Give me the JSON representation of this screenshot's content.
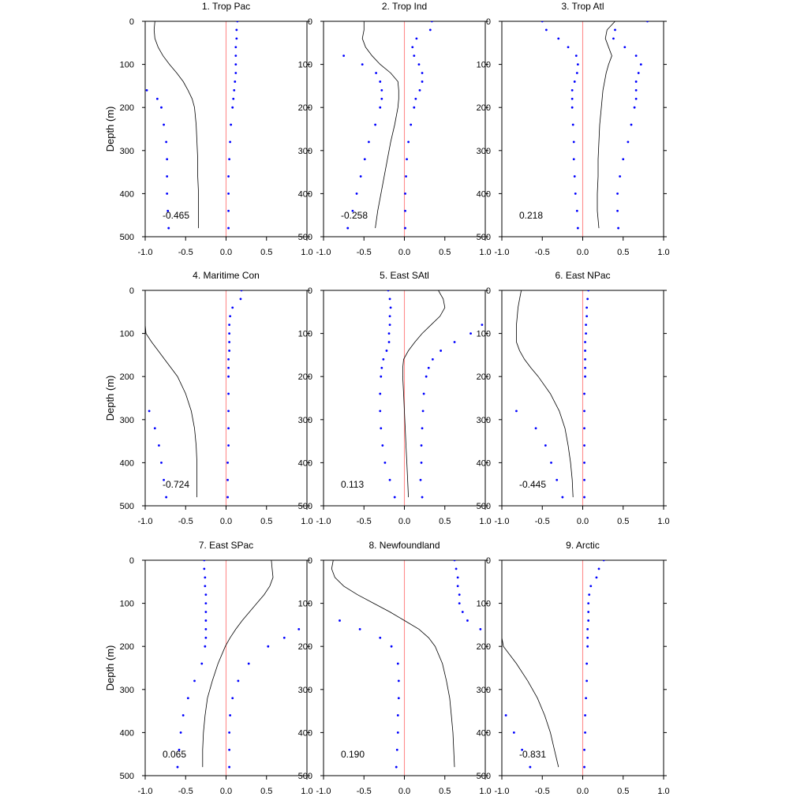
{
  "chart_data": [
    {
      "type": "line",
      "title": "1. Trop Pac",
      "ylabel": "Depth (m)",
      "correlation": "-0.465",
      "xlim": [
        -1.0,
        1.0
      ],
      "ylim": [
        500,
        0
      ],
      "xticks": [
        "-1.0",
        "-0.5",
        "0.0",
        "0.5",
        "1.0"
      ],
      "yticks": [
        "0",
        "100",
        "200",
        "300",
        "400",
        "500"
      ],
      "colors": {
        "profile": "#000000",
        "bounds": "#0000ff",
        "zero_line": "#ff8c8c"
      },
      "depth": [
        0,
        20,
        40,
        60,
        80,
        100,
        120,
        140,
        160,
        180,
        200,
        240,
        280,
        320,
        360,
        400,
        440,
        480
      ],
      "series": [
        {
          "values": [
            -0.88,
            -0.89,
            -0.88,
            -0.84,
            -0.78,
            -0.7,
            -0.61,
            -0.53,
            -0.47,
            -0.42,
            -0.39,
            -0.37,
            -0.36,
            -0.35,
            -0.35,
            -0.34,
            -0.34,
            -0.34
          ]
        },
        {
          "values": [
            -1.0,
            -1.0,
            -1.0,
            -1.0,
            -1.0,
            -1.0,
            -1.0,
            -1.0,
            -0.98,
            -0.85,
            -0.8,
            -0.77,
            -0.74,
            -0.73,
            -0.73,
            -0.73,
            -0.72,
            -0.71
          ]
        },
        {
          "values": [
            0.14,
            0.13,
            0.13,
            0.12,
            0.12,
            0.12,
            0.12,
            0.11,
            0.1,
            0.09,
            0.08,
            0.06,
            0.05,
            0.04,
            0.03,
            0.03,
            0.03,
            0.03
          ]
        }
      ]
    },
    {
      "type": "line",
      "title": "2. Trop Ind",
      "ylabel": "",
      "correlation": "-0.258",
      "xlim": [
        -1.0,
        1.0
      ],
      "ylim": [
        500,
        0
      ],
      "xticks": [
        "-1.0",
        "-0.5",
        "0.0",
        "0.5",
        "1.0"
      ],
      "yticks": [
        "0",
        "100",
        "200",
        "300",
        "400",
        "500"
      ],
      "colors": {
        "profile": "#000000",
        "bounds": "#0000ff",
        "zero_line": "#ff8c8c"
      },
      "depth": [
        0,
        20,
        40,
        60,
        80,
        100,
        120,
        140,
        160,
        180,
        200,
        240,
        280,
        320,
        360,
        400,
        440,
        480
      ],
      "series": [
        {
          "values": [
            -0.5,
            -0.5,
            -0.52,
            -0.48,
            -0.4,
            -0.3,
            -0.17,
            -0.08,
            -0.07,
            -0.07,
            -0.08,
            -0.12,
            -0.17,
            -0.21,
            -0.25,
            -0.29,
            -0.33,
            -0.36
          ]
        },
        {
          "values": [
            -1.0,
            -1.0,
            -1.0,
            -1.0,
            -0.75,
            -0.52,
            -0.35,
            -0.3,
            -0.28,
            -0.28,
            -0.3,
            -0.36,
            -0.44,
            -0.49,
            -0.54,
            -0.59,
            -0.64,
            -0.7
          ]
        },
        {
          "values": [
            0.34,
            0.32,
            0.15,
            0.1,
            0.12,
            0.18,
            0.22,
            0.22,
            0.19,
            0.14,
            0.12,
            0.08,
            0.05,
            0.03,
            0.02,
            0.01,
            0.01,
            0.01
          ]
        }
      ]
    },
    {
      "type": "line",
      "title": "3. Trop Atl",
      "ylabel": "",
      "correlation": "0.218",
      "xlim": [
        -1.0,
        1.0
      ],
      "ylim": [
        500,
        0
      ],
      "xticks": [
        "-1.0",
        "-0.5",
        "0.0",
        "0.5",
        "1.0"
      ],
      "yticks": [
        "0",
        "100",
        "200",
        "300",
        "400",
        "500"
      ],
      "colors": {
        "profile": "#000000",
        "bounds": "#0000ff",
        "zero_line": "#ff8c8c"
      },
      "depth": [
        0,
        20,
        40,
        60,
        80,
        100,
        120,
        140,
        160,
        180,
        200,
        240,
        280,
        320,
        360,
        400,
        440,
        480
      ],
      "series": [
        {
          "values": [
            0.4,
            0.3,
            0.28,
            0.32,
            0.36,
            0.32,
            0.29,
            0.27,
            0.25,
            0.24,
            0.23,
            0.21,
            0.2,
            0.19,
            0.19,
            0.18,
            0.18,
            0.2
          ]
        },
        {
          "values": [
            -0.5,
            -0.45,
            -0.3,
            -0.18,
            -0.08,
            -0.06,
            -0.07,
            -0.1,
            -0.13,
            -0.13,
            -0.13,
            -0.12,
            -0.11,
            -0.11,
            -0.1,
            -0.09,
            -0.07,
            -0.06
          ]
        },
        {
          "values": [
            0.8,
            0.4,
            0.38,
            0.52,
            0.66,
            0.72,
            0.69,
            0.66,
            0.66,
            0.66,
            0.64,
            0.6,
            0.56,
            0.5,
            0.46,
            0.43,
            0.43,
            0.44
          ]
        }
      ]
    },
    {
      "type": "line",
      "title": "4. Maritime Con",
      "ylabel": "Depth (m)",
      "correlation": "-0.724",
      "xlim": [
        -1.0,
        1.0
      ],
      "ylim": [
        500,
        0
      ],
      "xticks": [
        "-1.0",
        "-0.5",
        "0.0",
        "0.5",
        "1.0"
      ],
      "yticks": [
        "0",
        "100",
        "200",
        "300",
        "400",
        "500"
      ],
      "colors": {
        "profile": "#000000",
        "bounds": "#0000ff",
        "zero_line": "#ff8c8c"
      },
      "depth": [
        0,
        20,
        40,
        60,
        80,
        100,
        120,
        140,
        160,
        180,
        200,
        240,
        280,
        320,
        360,
        400,
        440,
        480
      ],
      "series": [
        {
          "values": [
            -1.0,
            -1.0,
            -1.0,
            -1.0,
            -1.0,
            -0.99,
            -0.92,
            -0.84,
            -0.76,
            -0.68,
            -0.6,
            -0.5,
            -0.43,
            -0.39,
            -0.37,
            -0.36,
            -0.36,
            -0.36
          ]
        },
        {
          "values": [
            -1.0,
            -1.0,
            -1.0,
            -1.0,
            -1.0,
            -1.0,
            -1.0,
            -1.0,
            -1.0,
            -1.0,
            -1.0,
            -1.0,
            -0.95,
            -0.88,
            -0.83,
            -0.8,
            -0.77,
            -0.74
          ]
        },
        {
          "values": [
            0.19,
            0.18,
            0.08,
            0.05,
            0.04,
            0.04,
            0.04,
            0.04,
            0.03,
            0.03,
            0.03,
            0.03,
            0.03,
            0.03,
            0.03,
            0.02,
            0.02,
            0.02
          ]
        }
      ]
    },
    {
      "type": "line",
      "title": "5. East SAtl",
      "ylabel": "",
      "correlation": "0.113",
      "xlim": [
        -1.0,
        1.0
      ],
      "ylim": [
        500,
        0
      ],
      "xticks": [
        "-1.0",
        "-0.5",
        "0.0",
        "0.5",
        "1.0"
      ],
      "yticks": [
        "0",
        "100",
        "200",
        "300",
        "400",
        "500"
      ],
      "colors": {
        "profile": "#000000",
        "bounds": "#0000ff",
        "zero_line": "#ff8c8c"
      },
      "depth": [
        0,
        20,
        40,
        60,
        80,
        100,
        120,
        140,
        160,
        180,
        200,
        240,
        280,
        320,
        360,
        400,
        440,
        480
      ],
      "series": [
        {
          "values": [
            0.42,
            0.48,
            0.5,
            0.44,
            0.33,
            0.22,
            0.13,
            0.05,
            -0.01,
            -0.02,
            -0.02,
            -0.01,
            0.0,
            0.01,
            0.02,
            0.03,
            0.04,
            0.05
          ]
        },
        {
          "values": [
            -0.2,
            -0.18,
            -0.17,
            -0.18,
            -0.18,
            -0.19,
            -0.19,
            -0.22,
            -0.26,
            -0.28,
            -0.29,
            -0.3,
            -0.3,
            -0.29,
            -0.27,
            -0.24,
            -0.18,
            -0.12
          ]
        },
        {
          "values": [
            1.0,
            1.0,
            1.0,
            1.0,
            0.96,
            0.82,
            0.62,
            0.45,
            0.35,
            0.3,
            0.27,
            0.24,
            0.23,
            0.22,
            0.21,
            0.21,
            0.2,
            0.22
          ]
        }
      ]
    },
    {
      "type": "line",
      "title": "6. East NPac",
      "ylabel": "",
      "correlation": "-0.445",
      "xlim": [
        -1.0,
        1.0
      ],
      "ylim": [
        500,
        0
      ],
      "xticks": [
        "-1.0",
        "-0.5",
        "0.0",
        "0.5",
        "1.0"
      ],
      "yticks": [
        "0",
        "100",
        "200",
        "300",
        "400",
        "500"
      ],
      "colors": {
        "profile": "#000000",
        "bounds": "#0000ff",
        "zero_line": "#ff8c8c"
      },
      "depth": [
        0,
        20,
        40,
        60,
        80,
        100,
        120,
        140,
        160,
        180,
        200,
        240,
        280,
        320,
        360,
        400,
        440,
        480
      ],
      "series": [
        {
          "values": [
            -0.76,
            -0.78,
            -0.8,
            -0.81,
            -0.82,
            -0.82,
            -0.82,
            -0.78,
            -0.72,
            -0.64,
            -0.55,
            -0.4,
            -0.29,
            -0.22,
            -0.18,
            -0.15,
            -0.13,
            -0.12
          ]
        },
        {
          "values": [
            -1.0,
            -1.0,
            -1.0,
            -1.0,
            -1.0,
            -1.0,
            -1.0,
            -1.0,
            -1.0,
            -1.0,
            -1.0,
            -1.0,
            -0.82,
            -0.58,
            -0.46,
            -0.39,
            -0.32,
            -0.25
          ]
        },
        {
          "values": [
            0.07,
            0.06,
            0.05,
            0.05,
            0.04,
            0.04,
            0.03,
            0.03,
            0.03,
            0.03,
            0.03,
            0.02,
            0.02,
            0.02,
            0.02,
            0.02,
            0.02,
            0.02
          ]
        }
      ]
    },
    {
      "type": "line",
      "title": "7. East SPac",
      "ylabel": "Depth (m)",
      "correlation": "0.065",
      "xlim": [
        -1.0,
        1.0
      ],
      "ylim": [
        500,
        0
      ],
      "xticks": [
        "-1.0",
        "-0.5",
        "0.0",
        "0.5",
        "1.0"
      ],
      "yticks": [
        "0",
        "100",
        "200",
        "300",
        "400",
        "500"
      ],
      "colors": {
        "profile": "#000000",
        "bounds": "#0000ff",
        "zero_line": "#ff8c8c"
      },
      "depth": [
        0,
        20,
        40,
        60,
        80,
        100,
        120,
        140,
        160,
        180,
        200,
        240,
        280,
        320,
        360,
        400,
        440,
        480
      ],
      "series": [
        {
          "values": [
            0.56,
            0.57,
            0.58,
            0.54,
            0.47,
            0.38,
            0.29,
            0.2,
            0.12,
            0.05,
            -0.01,
            -0.1,
            -0.17,
            -0.23,
            -0.26,
            -0.28,
            -0.29,
            -0.29
          ]
        },
        {
          "values": [
            -0.27,
            -0.27,
            -0.26,
            -0.26,
            -0.25,
            -0.25,
            -0.25,
            -0.25,
            -0.25,
            -0.25,
            -0.26,
            -0.3,
            -0.39,
            -0.47,
            -0.53,
            -0.56,
            -0.58,
            -0.6
          ]
        },
        {
          "values": [
            1.0,
            1.0,
            1.0,
            1.0,
            1.0,
            1.0,
            1.0,
            1.0,
            0.9,
            0.72,
            0.52,
            0.28,
            0.15,
            0.08,
            0.05,
            0.04,
            0.04,
            0.04
          ]
        }
      ]
    },
    {
      "type": "line",
      "title": "8. Newfoundland",
      "ylabel": "",
      "correlation": "0.190",
      "xlim": [
        -1.0,
        1.0
      ],
      "ylim": [
        500,
        0
      ],
      "xticks": [
        "-1.0",
        "-0.5",
        "0.0",
        "0.5",
        "1.0"
      ],
      "yticks": [
        "0",
        "100",
        "200",
        "300",
        "400",
        "500"
      ],
      "colors": {
        "profile": "#000000",
        "bounds": "#0000ff",
        "zero_line": "#ff8c8c"
      },
      "depth": [
        0,
        20,
        40,
        60,
        80,
        100,
        120,
        140,
        160,
        180,
        200,
        240,
        280,
        320,
        360,
        400,
        440,
        480
      ],
      "series": [
        {
          "values": [
            -0.88,
            -0.9,
            -0.86,
            -0.75,
            -0.58,
            -0.38,
            -0.18,
            0.0,
            0.18,
            0.3,
            0.38,
            0.47,
            0.52,
            0.56,
            0.58,
            0.6,
            0.61,
            0.62
          ]
        },
        {
          "values": [
            -1.0,
            -1.0,
            -1.0,
            -1.0,
            -1.0,
            -1.0,
            -1.0,
            -0.8,
            -0.55,
            -0.3,
            -0.16,
            -0.08,
            -0.07,
            -0.07,
            -0.08,
            -0.08,
            -0.09,
            -0.1
          ]
        },
        {
          "values": [
            0.62,
            0.64,
            0.66,
            0.66,
            0.68,
            0.68,
            0.72,
            0.78,
            0.94,
            1.0,
            1.0,
            1.0,
            1.0,
            1.0,
            1.0,
            1.0,
            1.0,
            1.0
          ]
        }
      ]
    },
    {
      "type": "line",
      "title": "9. Arctic",
      "ylabel": "",
      "correlation": "-0.831",
      "xlim": [
        -1.0,
        1.0
      ],
      "ylim": [
        500,
        0
      ],
      "xticks": [
        "-1.0",
        "-0.5",
        "0.0",
        "0.5",
        "1.0"
      ],
      "yticks": [
        "0",
        "100",
        "200",
        "300",
        "400",
        "500"
      ],
      "colors": {
        "profile": "#000000",
        "bounds": "#0000ff",
        "zero_line": "#ff8c8c"
      },
      "depth": [
        0,
        20,
        40,
        60,
        80,
        100,
        120,
        140,
        160,
        180,
        200,
        240,
        280,
        320,
        360,
        400,
        440,
        480
      ],
      "series": [
        {
          "values": [
            -1.0,
            -1.0,
            -1.0,
            -1.0,
            -1.0,
            -1.0,
            -1.0,
            -1.0,
            -1.0,
            -1.0,
            -0.98,
            -0.82,
            -0.68,
            -0.56,
            -0.47,
            -0.4,
            -0.35,
            -0.3
          ]
        },
        {
          "values": [
            -1.0,
            -1.0,
            -1.0,
            -1.0,
            -1.0,
            -1.0,
            -1.0,
            -1.0,
            -1.0,
            -1.0,
            -1.0,
            -1.0,
            -1.0,
            -1.0,
            -0.95,
            -0.85,
            -0.75,
            -0.65
          ]
        },
        {
          "values": [
            0.26,
            0.2,
            0.17,
            0.1,
            0.08,
            0.07,
            0.07,
            0.07,
            0.06,
            0.06,
            0.06,
            0.05,
            0.05,
            0.04,
            0.03,
            0.03,
            0.02,
            0.02
          ]
        }
      ]
    }
  ]
}
